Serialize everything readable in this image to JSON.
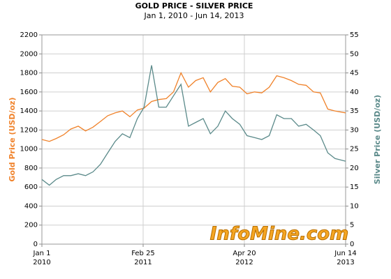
{
  "chart_data": {
    "type": "line",
    "title": "GOLD PRICE - SILVER PRICE",
    "subtitle": "Jan 1, 2010 - Jun 14, 2013",
    "ylabel": "Gold Price (USD/oz)",
    "y2label": "Silver Price (USD/oz)",
    "annotation": "InfoMine.com",
    "x": [
      "2010-01-01",
      "2010-02-01",
      "2010-03-01",
      "2010-04-01",
      "2010-05-01",
      "2010-06-01",
      "2010-07-01",
      "2010-08-01",
      "2010-09-01",
      "2010-10-01",
      "2010-11-01",
      "2010-12-01",
      "2011-01-01",
      "2011-02-01",
      "2011-03-01",
      "2011-04-01",
      "2011-05-01",
      "2011-06-01",
      "2011-07-01",
      "2011-08-01",
      "2011-09-01",
      "2011-10-01",
      "2011-11-01",
      "2011-12-01",
      "2012-01-01",
      "2012-02-01",
      "2012-03-01",
      "2012-04-01",
      "2012-05-01",
      "2012-06-01",
      "2012-07-01",
      "2012-08-01",
      "2012-09-01",
      "2012-10-01",
      "2012-11-01",
      "2012-12-01",
      "2013-01-01",
      "2013-02-01",
      "2013-03-01",
      "2013-04-01",
      "2013-05-01",
      "2013-06-14"
    ],
    "series": [
      {
        "name": "Gold Price (USD/oz)",
        "color": "#f0822a",
        "axis": "y",
        "values": [
          1100,
          1080,
          1110,
          1150,
          1210,
          1240,
          1190,
          1230,
          1290,
          1350,
          1380,
          1400,
          1340,
          1410,
          1430,
          1500,
          1520,
          1530,
          1600,
          1800,
          1650,
          1720,
          1750,
          1600,
          1700,
          1740,
          1660,
          1650,
          1580,
          1600,
          1590,
          1650,
          1770,
          1750,
          1720,
          1680,
          1670,
          1600,
          1590,
          1420,
          1400,
          1380
        ]
      },
      {
        "name": "Silver Price (USD/oz)",
        "color": "#5b8a8a",
        "axis": "y2",
        "values": [
          17,
          15.5,
          17,
          18,
          18,
          18.5,
          18,
          19,
          21,
          24,
          27,
          29,
          28,
          33,
          36,
          47,
          36,
          36,
          39,
          42,
          31,
          32,
          33,
          29,
          31,
          35,
          33,
          31.5,
          28.5,
          28,
          27.5,
          28.5,
          34,
          33,
          33,
          31,
          31.5,
          30,
          28.5,
          24,
          22.5,
          21.8
        ]
      }
    ],
    "xlim": [
      "2010-01-01",
      "2013-06-14"
    ],
    "xticks": [
      {
        "value": "2010-01-01",
        "label": [
          "Jan 1",
          "2010"
        ]
      },
      {
        "value": "2011-02-25",
        "label": [
          "Feb 25",
          "2011"
        ]
      },
      {
        "value": "2012-04-20",
        "label": [
          "Apr 20",
          "2012"
        ]
      },
      {
        "value": "2013-06-14",
        "label": [
          "Jun 14",
          "2013"
        ]
      }
    ],
    "ylim": [
      0,
      2200
    ],
    "yticks": [
      0,
      200,
      400,
      600,
      800,
      1000,
      1200,
      1400,
      1600,
      1800,
      2000,
      2200
    ],
    "y2lim": [
      0,
      55
    ],
    "y2ticks": [
      0,
      5,
      10,
      15,
      20,
      25,
      30,
      35,
      40,
      45,
      50,
      55
    ],
    "grid": true
  }
}
